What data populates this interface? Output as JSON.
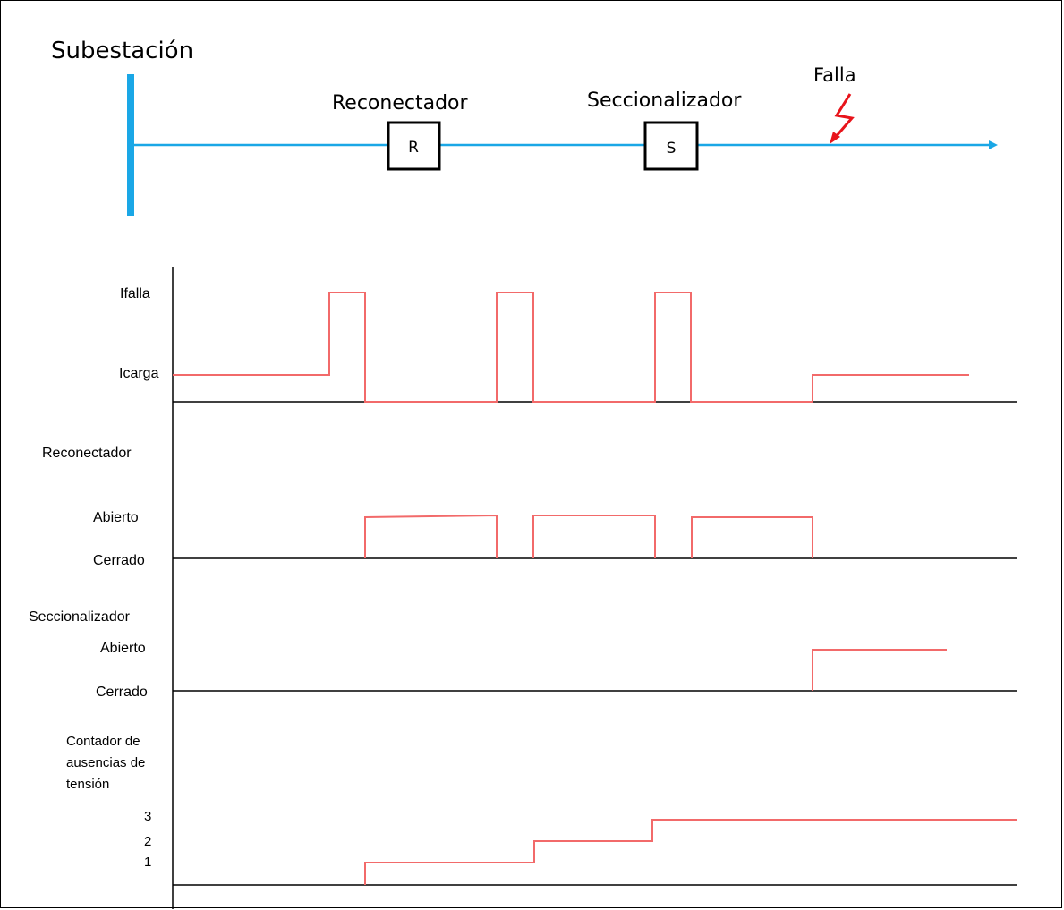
{
  "one_line": {
    "substation_label": "Subestación",
    "recloser_label": "Reconectador",
    "recloser_box": "R",
    "sectionalizer_label": "Seccionalizador",
    "sectionalizer_box": "S",
    "fault_label": "Falla",
    "fault_icon": "lightning-bolt-icon",
    "line_color": "#1aa7e6",
    "fault_color": "#e8141b"
  },
  "timing": {
    "signal_color": "#f26a6a",
    "current": {
      "labels": {
        "high": "Ifalla",
        "low": "Icarga"
      },
      "transitions": "load → fault → zero (x3 reclose attempts) → load restored"
    },
    "recloser": {
      "title": "Reconectador",
      "labels": {
        "open": "Abierto",
        "closed": "Cerrado"
      }
    },
    "sectionalizer": {
      "title": "Seccionalizador",
      "labels": {
        "open": "Abierto",
        "closed": "Cerrado"
      }
    },
    "counter": {
      "title_lines": [
        "Contador de",
        "ausencias de",
        "tensión"
      ],
      "ticks": [
        "3",
        "2",
        "1"
      ],
      "values": [
        0,
        1,
        2,
        3
      ]
    }
  }
}
